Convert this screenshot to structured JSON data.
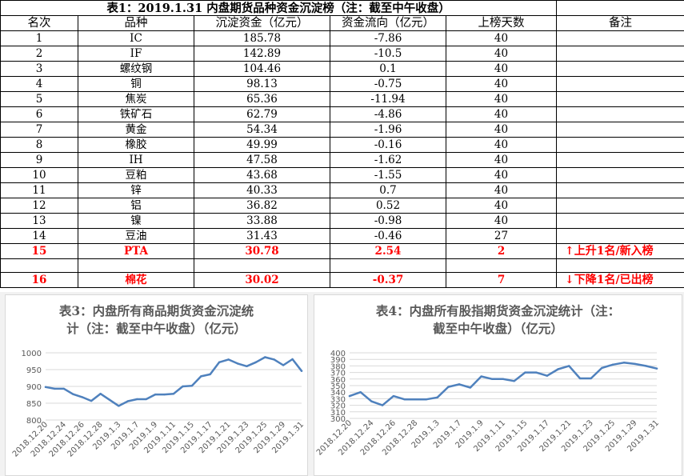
{
  "table": {
    "title": "表1：2019.1.31 内盘期货品种资金沉淀榜（注：截至中午收盘）",
    "headers": [
      "名次",
      "品种",
      "沉淀资金（亿元）",
      "资金流向（亿元）",
      "上榜天数",
      "备注"
    ],
    "rows": [
      {
        "rank": "1",
        "name": "IC",
        "fund": "185.78",
        "flow": "-7.86",
        "days": "40",
        "note": ""
      },
      {
        "rank": "2",
        "name": "IF",
        "fund": "142.89",
        "flow": "-10.5",
        "days": "40",
        "note": ""
      },
      {
        "rank": "3",
        "name": "螺纹钢",
        "fund": "104.46",
        "flow": "0.1",
        "days": "40",
        "note": ""
      },
      {
        "rank": "4",
        "name": "铜",
        "fund": "98.13",
        "flow": "-0.75",
        "days": "40",
        "note": ""
      },
      {
        "rank": "5",
        "name": "焦炭",
        "fund": "65.36",
        "flow": "-11.94",
        "days": "40",
        "note": ""
      },
      {
        "rank": "6",
        "name": "铁矿石",
        "fund": "62.79",
        "flow": "-4.86",
        "days": "40",
        "note": ""
      },
      {
        "rank": "7",
        "name": "黄金",
        "fund": "54.34",
        "flow": "-1.96",
        "days": "40",
        "note": ""
      },
      {
        "rank": "8",
        "name": "橡胶",
        "fund": "49.99",
        "flow": "-0.16",
        "days": "40",
        "note": ""
      },
      {
        "rank": "9",
        "name": "IH",
        "fund": "47.58",
        "flow": "-1.62",
        "days": "40",
        "note": ""
      },
      {
        "rank": "10",
        "name": "豆粕",
        "fund": "43.68",
        "flow": "-1.55",
        "days": "40",
        "note": ""
      },
      {
        "rank": "11",
        "name": "锌",
        "fund": "40.33",
        "flow": "0.7",
        "days": "40",
        "note": ""
      },
      {
        "rank": "12",
        "name": "铝",
        "fund": "36.82",
        "flow": "0.52",
        "days": "40",
        "note": ""
      },
      {
        "rank": "13",
        "name": "镍",
        "fund": "33.88",
        "flow": "-0.98",
        "days": "40",
        "note": ""
      },
      {
        "rank": "14",
        "name": "豆油",
        "fund": "31.43",
        "flow": "-0.46",
        "days": "27",
        "note": ""
      }
    ],
    "highlight_rows": [
      {
        "rank": "15",
        "name": "PTA",
        "fund": "30.78",
        "flow": "2.54",
        "days": "2",
        "note": "上升1名/新入榜",
        "arrow": "up"
      },
      {
        "rank": "16",
        "name": "棉花",
        "fund": "30.02",
        "flow": "-0.37",
        "days": "7",
        "note": "下降1名/已出榜",
        "arrow": "down"
      }
    ],
    "highlight_color": "#ff0000"
  },
  "chart_data": [
    {
      "type": "line",
      "title": "表3：内盘所有商品期货资金沉淀统计（注：截至中午收盘）（亿元）",
      "title_lines": [
        "表3：内盘所有商品期货资金沉淀统",
        "计（注：截至中午收盘）（亿元）"
      ],
      "x": [
        "2018.12.20",
        "2018.12.21",
        "2018.12.24",
        "2018.12.25",
        "2018.12.26",
        "2018.12.27",
        "2018.12.28",
        "2019.1.2",
        "2019.1.3",
        "2019.1.4",
        "2019.1.7",
        "2019.1.8",
        "2019.1.9",
        "2019.1.10",
        "2019.1.11",
        "2019.1.14",
        "2019.1.15",
        "2019.1.16",
        "2019.1.17",
        "2019.1.18",
        "2019.1.21",
        "2019.1.22",
        "2019.1.23",
        "2019.1.24",
        "2019.1.25",
        "2019.1.28",
        "2019.1.29",
        "2019.1.30",
        "2019.1.31"
      ],
      "tick_labels": [
        "2018.12.20",
        "2018.12.24",
        "2018.12.26",
        "2018.12.28",
        "2019.1.3",
        "2019.1.7",
        "2019.1.9",
        "2019.1.11",
        "2019.1.15",
        "2019.1.17",
        "2019.1.21",
        "2019.1.23",
        "2019.1.25",
        "2019.1.29",
        "2019.1.31"
      ],
      "values": [
        898,
        893,
        893,
        877,
        868,
        857,
        878,
        860,
        842,
        856,
        862,
        862,
        876,
        876,
        878,
        900,
        902,
        930,
        936,
        972,
        980,
        968,
        960,
        972,
        987,
        980,
        963,
        981,
        946
      ],
      "ylim": [
        800,
        1000
      ],
      "yticks": [
        800,
        850,
        900,
        950,
        1000
      ],
      "color": "#4f81bd",
      "grid": true
    },
    {
      "type": "line",
      "title": "表4：内盘所有股指期货资金沉淀统计（注：截至中午收盘）（亿元）",
      "title_lines": [
        "表4：内盘所有股指期货资金沉淀统计（注：",
        "截至中午收盘）（亿元）"
      ],
      "x": [
        "2018.12.20",
        "2018.12.21",
        "2018.12.24",
        "2018.12.25",
        "2018.12.26",
        "2018.12.27",
        "2018.12.28",
        "2019.1.2",
        "2019.1.3",
        "2019.1.4",
        "2019.1.7",
        "2019.1.8",
        "2019.1.9",
        "2019.1.10",
        "2019.1.11",
        "2019.1.14",
        "2019.1.15",
        "2019.1.16",
        "2019.1.17",
        "2019.1.18",
        "2019.1.21",
        "2019.1.22",
        "2019.1.23",
        "2019.1.24",
        "2019.1.25",
        "2019.1.28",
        "2019.1.29",
        "2019.1.30",
        "2019.1.31"
      ],
      "tick_labels": [
        "2018.12.20",
        "2018.12.24",
        "2018.12.26",
        "2018.12.28",
        "2019.1.3",
        "2019.1.7",
        "2019.1.9",
        "2019.1.11",
        "2019.1.15",
        "2019.1.17",
        "2019.1.21",
        "2019.1.23",
        "2019.1.25",
        "2019.1.29",
        "2019.1.31"
      ],
      "values": [
        334,
        340,
        326,
        320,
        334,
        329,
        329,
        329,
        332,
        348,
        352,
        347,
        364,
        360,
        360,
        357,
        370,
        370,
        365,
        375,
        380,
        361,
        361,
        377,
        382,
        385,
        383,
        380,
        376
      ],
      "ylim": [
        300,
        400
      ],
      "yticks": [
        300,
        310,
        320,
        330,
        340,
        350,
        360,
        370,
        380,
        390,
        400
      ],
      "color": "#4f81bd",
      "grid": true
    }
  ]
}
